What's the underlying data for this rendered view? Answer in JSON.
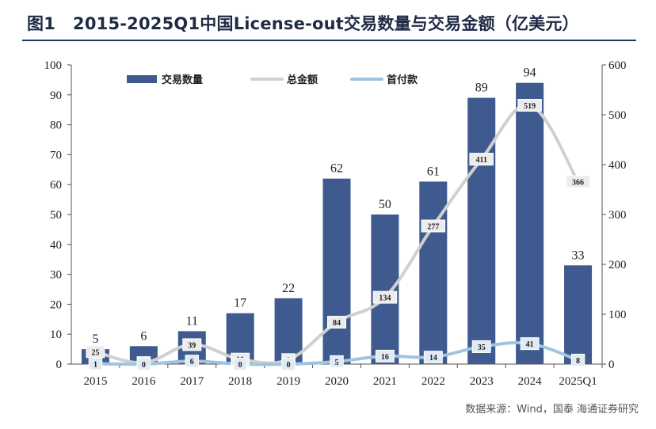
{
  "page": {
    "title_label": "图1",
    "title_text": "2015-2025Q1中国License-out交易数量与交易金额（亿美元）",
    "source": "数据来源：Wind，国泰 海通证券研究"
  },
  "chart_data": {
    "type": "bar",
    "categories": [
      "2015",
      "2016",
      "2017",
      "2018",
      "2019",
      "2020",
      "2021",
      "2022",
      "2023",
      "2024",
      "2025Q1"
    ],
    "series": [
      {
        "name": "交易数量",
        "type": "bar",
        "axis": "left",
        "color": "#3e5a8e",
        "values": [
          5,
          6,
          11,
          17,
          22,
          62,
          50,
          61,
          89,
          94,
          33
        ]
      },
      {
        "name": "总金额",
        "type": "line",
        "axis": "right",
        "color": "#d0d0d0",
        "values": [
          25,
          3,
          39,
          10,
          9,
          84,
          134,
          277,
          411,
          519,
          366
        ]
      },
      {
        "name": "首付款",
        "type": "line",
        "axis": "right",
        "color": "#9fc4e0",
        "values": [
          1,
          0,
          6,
          0,
          0,
          5,
          16,
          14,
          35,
          41,
          8
        ]
      }
    ],
    "y_left": {
      "min": 0,
      "max": 100,
      "ticks": [
        0,
        10,
        20,
        30,
        40,
        50,
        60,
        70,
        80,
        90,
        100
      ]
    },
    "y_right": {
      "min": 0,
      "max": 600,
      "ticks": [
        0,
        100,
        200,
        300,
        400,
        500,
        600
      ]
    },
    "legend_position": "top",
    "grid": false
  }
}
